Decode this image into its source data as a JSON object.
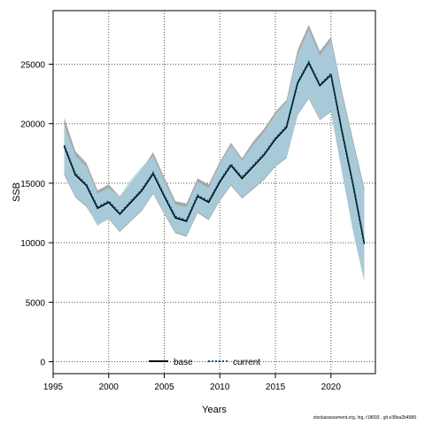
{
  "chart_data": {
    "type": "line",
    "title": "",
    "xlabel": "Years",
    "ylabel": "SSB",
    "xlim": [
      1995,
      2024
    ],
    "ylim": [
      -1000,
      29500
    ],
    "xticks": [
      1995,
      2000,
      2005,
      2010,
      2015,
      2020
    ],
    "yticks": [
      0,
      5000,
      10000,
      15000,
      20000,
      25000
    ],
    "grid": true,
    "legend_position": "bottom-center",
    "x": [
      1996,
      1997,
      1998,
      1999,
      2000,
      2001,
      2002,
      2003,
      2004,
      2005,
      2006,
      2007,
      2008,
      2009,
      2010,
      2011,
      2012,
      2013,
      2014,
      2015,
      2016,
      2017,
      2018,
      2019,
      2020,
      2021,
      2022,
      2023
    ],
    "series": [
      {
        "name": "base",
        "color": "#000000",
        "line_style": "solid",
        "band_color": "#a9a9a9",
        "values": [
          18100,
          15700,
          14800,
          12900,
          13400,
          12400,
          13400,
          14400,
          15800,
          13900,
          12100,
          11800,
          13900,
          13400,
          15100,
          16500,
          15400,
          16400,
          17400,
          18700,
          19700,
          23400,
          25100,
          23200,
          24100,
          19300,
          14800,
          9900
        ],
        "lower": [
          15700,
          13800,
          13000,
          11500,
          12000,
          10900,
          11800,
          12700,
          14100,
          12400,
          10800,
          10500,
          12500,
          11900,
          13500,
          14800,
          13700,
          14500,
          15300,
          16400,
          17100,
          20700,
          22100,
          20300,
          21000,
          15900,
          10900,
          6800
        ],
        "upper": [
          20500,
          17700,
          16700,
          14400,
          14900,
          13900,
          15000,
          16200,
          17600,
          15500,
          13500,
          13300,
          15400,
          14900,
          16800,
          18400,
          17100,
          18500,
          19600,
          21000,
          22000,
          26200,
          28300,
          26100,
          27300,
          22700,
          18600,
          14600
        ]
      },
      {
        "name": "current",
        "color": "#0b4f6c",
        "line_style": "dotted",
        "band_color": "#a8d4e6",
        "values": [
          18200,
          15800,
          14900,
          13000,
          13500,
          12500,
          13500,
          14500,
          15900,
          14000,
          12200,
          11900,
          14000,
          13500,
          15200,
          16600,
          15500,
          16500,
          17500,
          18800,
          19800,
          23500,
          25200,
          23300,
          24200,
          19400,
          14900,
          10000
        ],
        "lower": [
          15900,
          13900,
          13100,
          11400,
          12100,
          11000,
          11900,
          12800,
          14200,
          12500,
          10900,
          10600,
          12600,
          12000,
          13600,
          14900,
          13800,
          14600,
          15400,
          16500,
          17200,
          20800,
          22200,
          20400,
          21100,
          16000,
          11000,
          6900
        ],
        "upper": [
          19900,
          17300,
          16400,
          14100,
          14600,
          13900,
          15300,
          16400,
          17300,
          15200,
          13200,
          13000,
          15100,
          14600,
          16600,
          18200,
          16900,
          18200,
          19300,
          20800,
          21800,
          25800,
          27900,
          25700,
          27000,
          22400,
          18300,
          14300
        ]
      }
    ]
  },
  "footer_text": "stockassessment.org, lng, r18093 , git e38ea2b4989"
}
